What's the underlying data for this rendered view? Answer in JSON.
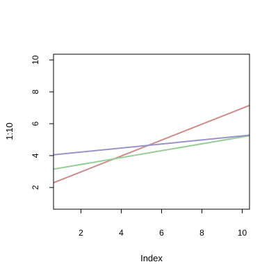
{
  "chart_data": {
    "type": "line",
    "title": "",
    "xlabel": "Index",
    "ylabel": "1:10",
    "xlim": [
      0.64,
      10.36
    ],
    "ylim": [
      0.64,
      10.36
    ],
    "x_ticks": [
      2,
      4,
      6,
      8,
      10
    ],
    "y_ticks": [
      2,
      4,
      6,
      8,
      10
    ],
    "grid": false,
    "legend": "none",
    "series": [
      {
        "color": "#d08a8a",
        "x": [
          0.64,
          10.36
        ],
        "y": [
          2.3,
          7.15
        ]
      },
      {
        "color": "#96cf96",
        "x": [
          0.64,
          10.36
        ],
        "y": [
          3.15,
          5.25
        ]
      },
      {
        "color": "#9a92cc",
        "x": [
          0.64,
          10.36
        ],
        "y": [
          4.05,
          5.28
        ]
      }
    ]
  }
}
